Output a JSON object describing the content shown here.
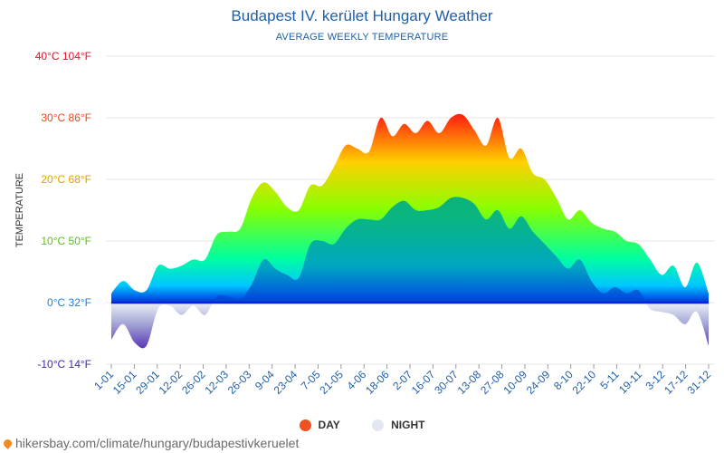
{
  "header": {
    "title": "Budapest IV. kerület Hungary Weather",
    "subtitle": "AVERAGE WEEKLY TEMPERATURE"
  },
  "footer": {
    "url": "hikersbay.com/climate/hungary/budapestivkeruelet"
  },
  "legend": {
    "day": {
      "label": "DAY",
      "color": "#f0501e"
    },
    "night": {
      "label": "NIGHT",
      "color": "#e3e7f3"
    }
  },
  "chart_data": {
    "type": "area",
    "ylabel": "TEMPERATURE",
    "ylim": [
      -10,
      40
    ],
    "y_ticks": [
      {
        "value": 40,
        "label": "40°C 104°F",
        "color": "#e8112d"
      },
      {
        "value": 30,
        "label": "30°C 86°F",
        "color": "#e8481a"
      },
      {
        "value": 20,
        "label": "20°C 68°F",
        "color": "#e0a000"
      },
      {
        "value": 10,
        "label": "10°C 50°F",
        "color": "#5cc01e"
      },
      {
        "value": 0,
        "label": "0°C 32°F",
        "color": "#1d7fd8"
      },
      {
        "value": -10,
        "label": "-10°C 14°F",
        "color": "#3a2bb5"
      }
    ],
    "x_labels": [
      "1-01",
      "15-01",
      "29-01",
      "12-02",
      "26-02",
      "12-03",
      "26-03",
      "9-04",
      "23-04",
      "7-05",
      "21-05",
      "4-06",
      "18-06",
      "2-07",
      "16-07",
      "30-07",
      "13-08",
      "27-08",
      "10-09",
      "24-09",
      "8-10",
      "22-10",
      "5-11",
      "19-11",
      "3-12",
      "17-12",
      "31-12"
    ],
    "series": [
      {
        "name": "DAY",
        "values": [
          1.5,
          3.5,
          2,
          2,
          6,
          5.5,
          6,
          7,
          7,
          11,
          11.5,
          12,
          17,
          19.5,
          18,
          15.5,
          15,
          19,
          19,
          22,
          25.5,
          25,
          24.5,
          30,
          27,
          29,
          27.5,
          29.5,
          27.5,
          30,
          30.5,
          28,
          25.5,
          30,
          23.5,
          25,
          21,
          20,
          17,
          13.5,
          15,
          13,
          12,
          11.5,
          10,
          9.5,
          7,
          4.5,
          6,
          2.5,
          6.5,
          1.5
        ]
      },
      {
        "name": "NIGHT",
        "values": [
          -6,
          -3.5,
          -6.5,
          -7,
          -1,
          -0.5,
          -2,
          -0.5,
          -2,
          1,
          1,
          0.5,
          3,
          7,
          5.5,
          4.5,
          4,
          9.5,
          10,
          9.5,
          12,
          13.5,
          13.5,
          13.5,
          15.5,
          16.5,
          15,
          15,
          15.5,
          17,
          17,
          16,
          13.5,
          15,
          12,
          14,
          11.5,
          9.5,
          7.5,
          5.5,
          7,
          3.5,
          1.5,
          2.5,
          1.5,
          2,
          -1,
          -1.5,
          -2,
          -3.5,
          -1.5,
          -7
        ]
      }
    ]
  }
}
